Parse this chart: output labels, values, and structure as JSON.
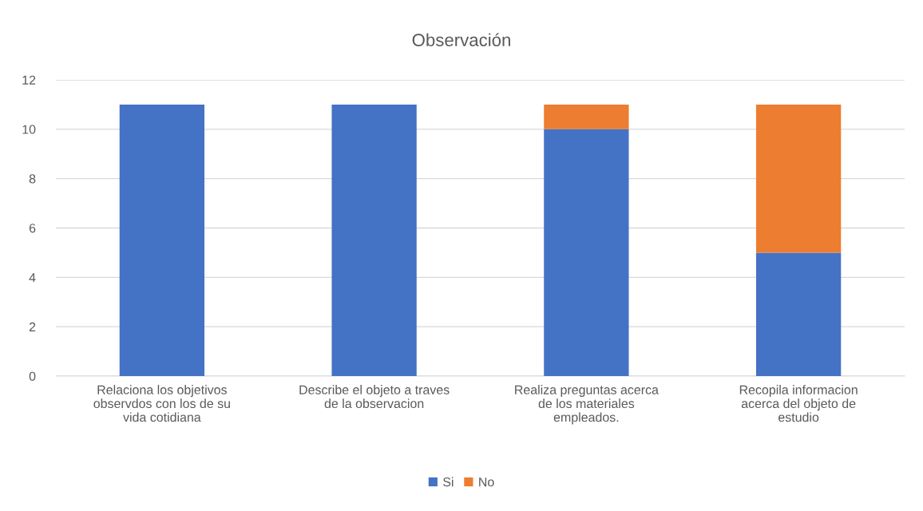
{
  "chart_data": {
    "type": "bar",
    "title": "Observación",
    "stacked": true,
    "categories": [
      "Relaciona los objetivos\nobservdos con los de su\nvida cotidiana",
      "Describe el objeto a traves\nde la observacion",
      "Realiza preguntas acerca\nde los materiales\nempleados.",
      "Recopila informacion\nacerca del objeto de\nestudio"
    ],
    "series": [
      {
        "name": "Si",
        "color": "#4472c4",
        "values": [
          11,
          11,
          10,
          5
        ]
      },
      {
        "name": "No",
        "color": "#ed7d31",
        "values": [
          0,
          0,
          1,
          6
        ]
      }
    ],
    "ylim": [
      0,
      12
    ],
    "yticks": [
      0,
      2,
      4,
      6,
      8,
      10,
      12
    ],
    "grid": "y",
    "legend": "bottom"
  }
}
